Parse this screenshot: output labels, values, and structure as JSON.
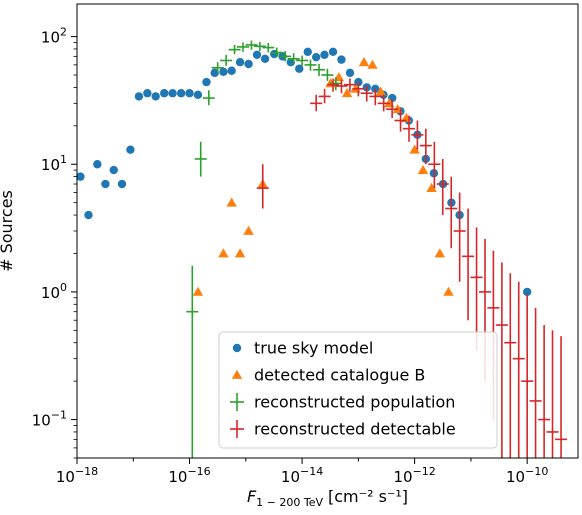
{
  "chart_data": {
    "type": "scatter",
    "title": "",
    "xlabel": "F",
    "xlabel_subscript": "1 − 200 TeV",
    "xlabel_units": "[cm⁻² s⁻¹]",
    "ylabel": "# Sources",
    "x_scale": "log",
    "y_scale": "log",
    "xlim": [
      1e-18,
      8e-10
    ],
    "ylim": [
      0.05,
      180
    ],
    "x_ticks": [
      {
        "value": 1e-18,
        "base": "10",
        "exp": "−18"
      },
      {
        "value": 1e-16,
        "base": "10",
        "exp": "−16"
      },
      {
        "value": 1e-14,
        "base": "10",
        "exp": "−14"
      },
      {
        "value": 1e-12,
        "base": "10",
        "exp": "−12"
      },
      {
        "value": 1e-10,
        "base": "10",
        "exp": "−10"
      }
    ],
    "y_ticks": [
      {
        "value": 0.1,
        "base": "10",
        "exp": "−1"
      },
      {
        "value": 1,
        "base": "10",
        "exp": "0"
      },
      {
        "value": 10,
        "base": "10",
        "exp": "1"
      },
      {
        "value": 100,
        "base": "10",
        "exp": "2"
      }
    ],
    "legend_position": "lower-right",
    "series": [
      {
        "name": "true sky model",
        "marker": "circle",
        "color": "#1f77b4",
        "points": [
          [
            1.15e-18,
            8
          ],
          [
            1.6e-18,
            4
          ],
          [
            2.3e-18,
            10
          ],
          [
            3.2e-18,
            7
          ],
          [
            4.5e-18,
            9
          ],
          [
            6.3e-18,
            7
          ],
          [
            8.9e-18,
            13
          ],
          [
            1.26e-17,
            34
          ],
          [
            1.78e-17,
            36
          ],
          [
            2.5e-17,
            34
          ],
          [
            3.55e-17,
            36
          ],
          [
            5e-17,
            36
          ],
          [
            7.1e-17,
            36
          ],
          [
            1e-16,
            36
          ],
          [
            1.41e-16,
            35
          ],
          [
            2e-16,
            44
          ],
          [
            2.8e-16,
            52
          ],
          [
            4e-16,
            53
          ],
          [
            5.6e-16,
            54
          ],
          [
            7.9e-16,
            63
          ],
          [
            1.12e-15,
            61
          ],
          [
            1.58e-15,
            72
          ],
          [
            2.2e-15,
            67
          ],
          [
            3.2e-15,
            73
          ],
          [
            4.5e-15,
            70
          ],
          [
            6.3e-15,
            63
          ],
          [
            8.9e-15,
            56
          ],
          [
            1.26e-14,
            76
          ],
          [
            1.78e-14,
            69
          ],
          [
            2.5e-14,
            72
          ],
          [
            3.55e-14,
            76
          ],
          [
            5e-14,
            66
          ],
          [
            7.1e-14,
            52
          ],
          [
            1e-13,
            44
          ],
          [
            1.41e-13,
            40
          ],
          [
            2e-13,
            39
          ],
          [
            2.8e-13,
            35
          ],
          [
            4e-13,
            33
          ],
          [
            5.6e-13,
            26
          ],
          [
            7.9e-13,
            22
          ],
          [
            1.12e-12,
            17
          ],
          [
            1.58e-12,
            11
          ],
          [
            2.2e-12,
            8.5
          ],
          [
            3.2e-12,
            7
          ],
          [
            4.5e-12,
            5
          ],
          [
            6.3e-12,
            4
          ],
          [
            1e-10,
            1
          ]
        ]
      },
      {
        "name": "detected catalogue B",
        "marker": "triangle",
        "color": "#ff7f0e",
        "points": [
          [
            1.41e-16,
            1
          ],
          [
            4e-16,
            2
          ],
          [
            5.6e-16,
            5
          ],
          [
            7.9e-16,
            2
          ],
          [
            1.12e-15,
            3
          ],
          [
            2e-15,
            7
          ],
          [
            3.2e-14,
            43
          ],
          [
            4.5e-14,
            48
          ],
          [
            6.3e-14,
            36
          ],
          [
            8.9e-14,
            39
          ],
          [
            1.26e-13,
            63
          ],
          [
            1.78e-13,
            60
          ],
          [
            2.5e-13,
            37
          ],
          [
            3.55e-13,
            30
          ],
          [
            5e-13,
            27
          ],
          [
            7.1e-13,
            23
          ],
          [
            1e-12,
            13
          ],
          [
            1.41e-12,
            9
          ],
          [
            2e-12,
            6.5
          ],
          [
            2.8e-12,
            2
          ],
          [
            4e-12,
            1
          ]
        ]
      },
      {
        "name": "reconstructed population",
        "marker": "cross_errorbar",
        "color": "#2ca02c",
        "points": [
          [
            1.12e-16,
            0.7,
            0.04,
            1.6
          ],
          [
            1.58e-16,
            11,
            8,
            15
          ],
          [
            2.2e-16,
            33,
            29,
            38
          ],
          [
            3.16e-16,
            57,
            52,
            63
          ],
          [
            4.47e-16,
            65,
            59,
            72
          ],
          [
            6.31e-16,
            79,
            73,
            86
          ],
          [
            8.91e-16,
            83,
            76,
            90
          ],
          [
            1.26e-15,
            86,
            79,
            93
          ],
          [
            1.78e-15,
            84,
            77,
            91
          ],
          [
            2.51e-15,
            82,
            75,
            89
          ],
          [
            3.55e-15,
            75,
            69,
            82
          ],
          [
            5.01e-15,
            70,
            64,
            77
          ],
          [
            7.08e-15,
            67,
            61,
            74
          ],
          [
            1e-14,
            65,
            59,
            71
          ],
          [
            1.41e-14,
            60,
            54,
            66
          ],
          [
            2e-14,
            55,
            49,
            61
          ],
          [
            2.82e-14,
            50,
            45,
            56
          ],
          [
            3.98e-14,
            43,
            38,
            48
          ]
        ]
      },
      {
        "name": "reconstructed detectable",
        "marker": "cross_errorbar",
        "color": "#d62728",
        "points": [
          [
            2e-15,
            6.5,
            4.5,
            10
          ],
          [
            1.78e-14,
            30,
            26,
            35
          ],
          [
            2.51e-14,
            34,
            30,
            39
          ],
          [
            3.55e-14,
            42,
            37,
            47
          ],
          [
            5.01e-14,
            41,
            36,
            46
          ],
          [
            7.08e-14,
            42,
            37,
            47
          ],
          [
            1e-13,
            39,
            34,
            44
          ],
          [
            1.41e-13,
            36,
            31,
            41
          ],
          [
            2e-13,
            34,
            29,
            39
          ],
          [
            2.82e-13,
            30,
            26,
            35
          ],
          [
            3.98e-13,
            27,
            23,
            32
          ],
          [
            5.62e-13,
            22,
            18,
            27
          ],
          [
            7.94e-13,
            19,
            15,
            24
          ],
          [
            1.12e-12,
            17,
            13,
            22
          ],
          [
            1.58e-12,
            14,
            10,
            19
          ],
          [
            2.24e-12,
            10,
            6.5,
            15
          ],
          [
            3.16e-12,
            7.0,
            4,
            11
          ],
          [
            4.47e-12,
            4.5,
            2.2,
            8
          ],
          [
            6.31e-12,
            3.0,
            1.2,
            6
          ],
          [
            8.91e-12,
            1.9,
            0.6,
            4.5
          ],
          [
            1.26e-11,
            1.3,
            0.35,
            3.2
          ],
          [
            1.78e-11,
            1.0,
            0.2,
            2.6
          ],
          [
            2.51e-11,
            0.75,
            0.1,
            2.1
          ],
          [
            3.55e-11,
            0.55,
            0.05,
            1.7
          ],
          [
            5.01e-11,
            0.4,
            0.05,
            1.4
          ],
          [
            7.08e-11,
            0.3,
            0.05,
            1.2
          ],
          [
            1e-10,
            0.2,
            0.05,
            0.95
          ],
          [
            1.41e-10,
            0.14,
            0.05,
            0.75
          ],
          [
            2e-10,
            0.1,
            0.05,
            0.55
          ],
          [
            2.82e-10,
            0.08,
            0.05,
            0.5
          ],
          [
            4e-10,
            0.07,
            0.05,
            0.45
          ]
        ]
      }
    ]
  }
}
